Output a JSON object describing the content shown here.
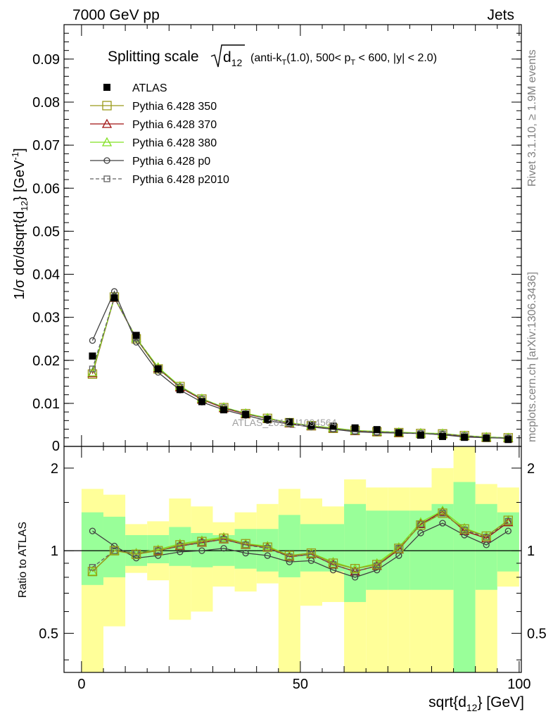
{
  "header": {
    "left": "7000 GeV pp",
    "right": "Jets"
  },
  "side": {
    "rivet": "Rivet 3.1.10, ≥ 1.9M events",
    "mcplots": "mcplots.cern.ch [arXiv:1306.3436]"
  },
  "watermark": "ATLAS_2012_I1094564",
  "title": {
    "main": "Splitting scale",
    "d": "d",
    "d_sub": "12",
    "cut_a": "(anti-k",
    "cut_a_sub": "T",
    "cut_b": "(1.0), 500< p",
    "cut_b_sub": "T",
    "cut_c": " < 600, |y| < 2.0)"
  },
  "ylabel_top": {
    "a": "1/σ dσ/dsqrt{d",
    "sub": "12",
    "b": "} [GeV",
    "sup": "-1",
    "c": "]"
  },
  "ylabel_bottom": "Ratio to ATLAS",
  "xlabel": {
    "a": "sqrt{d",
    "sub": "12",
    "b": "} [GeV]"
  },
  "chart_data": [
    {
      "type": "line",
      "panel": "main",
      "xlim": [
        -4,
        100.5
      ],
      "ylim": [
        0,
        0.098
      ],
      "xticks": [
        0,
        50,
        100
      ],
      "yticks": [
        0,
        0.01,
        0.02,
        0.03,
        0.04,
        0.05,
        0.06,
        0.07,
        0.08,
        0.09
      ],
      "ytick_labels": [
        "0",
        "0.01",
        "0.02",
        "0.03",
        "0.04",
        "0.05",
        "0.06",
        "0.07",
        "0.08",
        "0.09"
      ],
      "legend_position": "top-left",
      "x": [
        2.5,
        7.5,
        12.5,
        17.5,
        22.5,
        27.5,
        32.5,
        37.5,
        42.5,
        47.5,
        52.5,
        57.5,
        62.5,
        67.5,
        72.5,
        77.5,
        82.5,
        87.5,
        92.5,
        97.5
      ],
      "series": [
        {
          "name": "ATLAS",
          "color": "#000000",
          "marker": "filled-square",
          "line": "none",
          "values": [
            0.021,
            0.0345,
            0.0258,
            0.018,
            0.0132,
            0.0104,
            0.0085,
            0.0074,
            0.0063,
            0.0057,
            0.0049,
            0.0047,
            0.0043,
            0.0039,
            0.0032,
            0.0026,
            0.0023,
            0.0021,
            0.0019,
            0.0016
          ]
        },
        {
          "name": "Pythia 6.428 350",
          "color": "#9a9a1a",
          "marker": "open-square",
          "line": "solid",
          "values": [
            0.0168,
            0.0347,
            0.025,
            0.018,
            0.0139,
            0.011,
            0.009,
            0.0076,
            0.0065,
            0.0055,
            0.0048,
            0.0042,
            0.0037,
            0.0034,
            0.0032,
            0.003,
            0.0029,
            0.0025,
            0.0021,
            0.002
          ]
        },
        {
          "name": "Pythia 6.428 370",
          "color": "#a01010",
          "marker": "open-triangle",
          "line": "solid",
          "values": [
            0.017,
            0.0345,
            0.0252,
            0.0182,
            0.0137,
            0.0109,
            0.0089,
            0.0075,
            0.0065,
            0.0054,
            0.0047,
            0.0042,
            0.0036,
            0.0034,
            0.0032,
            0.0031,
            0.0029,
            0.0024,
            0.0021,
            0.0019
          ]
        },
        {
          "name": "Pythia 6.428 380",
          "color": "#80e020",
          "marker": "open-triangle",
          "line": "solid",
          "values": [
            0.0172,
            0.0346,
            0.0252,
            0.0184,
            0.014,
            0.0111,
            0.0091,
            0.0077,
            0.0066,
            0.0055,
            0.0048,
            0.0043,
            0.0037,
            0.0035,
            0.0033,
            0.0031,
            0.003,
            0.0025,
            0.0022,
            0.002
          ]
        },
        {
          "name": "Pythia 6.428 p0",
          "color": "#404040",
          "marker": "open-circle",
          "line": "solid",
          "values": [
            0.0246,
            0.036,
            0.0242,
            0.0172,
            0.0131,
            0.0103,
            0.0085,
            0.0072,
            0.006,
            0.0052,
            0.0045,
            0.004,
            0.0034,
            0.0032,
            0.0031,
            0.003,
            0.0027,
            0.0022,
            0.002,
            0.0019
          ]
        },
        {
          "name": "Pythia 6.428 p2010",
          "color": "#606060",
          "marker": "open-square-small",
          "line": "dashed",
          "values": [
            0.018,
            0.0346,
            0.0252,
            0.0181,
            0.0138,
            0.011,
            0.009,
            0.0076,
            0.0064,
            0.0054,
            0.0047,
            0.0041,
            0.0036,
            0.0034,
            0.0032,
            0.003,
            0.0029,
            0.0025,
            0.0021,
            0.002
          ]
        }
      ]
    },
    {
      "type": "line",
      "panel": "ratio",
      "xlim": [
        -4,
        100.5
      ],
      "ylim": [
        0.36,
        2.4
      ],
      "yscale": "log",
      "yticks": [
        0.5,
        1,
        2
      ],
      "ytick_labels": [
        "0.5",
        "1",
        "2"
      ],
      "xticks": [
        0,
        50,
        100
      ],
      "xtick_labels": [
        "0",
        "50",
        "100"
      ],
      "bands": {
        "edges": [
          0,
          5,
          10,
          15,
          20,
          25,
          30,
          35,
          40,
          45,
          50,
          55,
          60,
          65,
          70,
          75,
          80,
          85,
          90,
          95,
          100
        ],
        "inner_color": "#99ff99",
        "outer_color": "#ffff99",
        "inner_low": [
          0.75,
          0.8,
          0.88,
          0.9,
          0.88,
          0.87,
          0.88,
          0.86,
          0.84,
          0.8,
          0.84,
          0.84,
          0.65,
          0.72,
          0.72,
          0.72,
          0.72,
          0.2,
          0.72,
          0.84
        ],
        "inner_high": [
          1.38,
          1.33,
          1.14,
          1.14,
          1.22,
          1.16,
          1.14,
          1.2,
          1.2,
          1.35,
          1.25,
          1.25,
          1.48,
          1.4,
          1.4,
          1.4,
          1.48,
          1.78,
          1.48,
          1.38
        ],
        "outer_low": [
          0.2,
          0.53,
          0.83,
          0.78,
          0.56,
          0.6,
          0.74,
          0.71,
          0.76,
          0.3,
          0.63,
          0.65,
          0.2,
          0.3,
          0.3,
          0.3,
          0.3,
          0.2,
          0.3,
          0.74
        ],
        "outer_high": [
          1.68,
          1.6,
          1.25,
          1.28,
          1.55,
          1.45,
          1.27,
          1.38,
          1.48,
          1.68,
          1.55,
          1.45,
          1.82,
          1.7,
          1.7,
          1.7,
          2.0,
          3.0,
          1.75,
          1.7
        ]
      },
      "x": [
        2.5,
        7.5,
        12.5,
        17.5,
        22.5,
        27.5,
        32.5,
        37.5,
        42.5,
        47.5,
        52.5,
        57.5,
        62.5,
        67.5,
        72.5,
        77.5,
        82.5,
        87.5,
        92.5,
        97.5
      ],
      "series": [
        {
          "name": "Pythia 6.428 350",
          "color": "#9a9a1a",
          "marker": "open-square",
          "line": "solid",
          "values": [
            0.84,
            1.0,
            0.97,
            1.0,
            1.05,
            1.08,
            1.11,
            1.06,
            1.03,
            0.96,
            0.98,
            0.9,
            0.86,
            0.89,
            1.02,
            1.24,
            1.37,
            1.2,
            1.13,
            1.29
          ]
        },
        {
          "name": "Pythia 6.428 370",
          "color": "#a01010",
          "marker": "open-triangle",
          "line": "solid",
          "values": [
            0.84,
            1.0,
            0.98,
            1.0,
            1.04,
            1.07,
            1.1,
            1.05,
            1.03,
            0.95,
            0.97,
            0.89,
            0.84,
            0.88,
            1.01,
            1.25,
            1.39,
            1.18,
            1.11,
            1.27
          ]
        },
        {
          "name": "Pythia 6.428 380",
          "color": "#80e020",
          "marker": "open-triangle",
          "line": "solid",
          "values": [
            0.84,
            1.0,
            0.98,
            1.01,
            1.06,
            1.09,
            1.12,
            1.06,
            1.04,
            0.96,
            0.98,
            0.91,
            0.86,
            0.9,
            1.03,
            1.27,
            1.4,
            1.21,
            1.13,
            1.29
          ]
        },
        {
          "name": "Pythia 6.428 p0",
          "color": "#404040",
          "marker": "open-circle",
          "line": "solid",
          "values": [
            1.18,
            1.04,
            0.94,
            0.96,
            0.99,
            1.0,
            1.02,
            0.98,
            0.96,
            0.91,
            0.92,
            0.85,
            0.8,
            0.85,
            0.96,
            1.16,
            1.26,
            1.14,
            1.05,
            1.18
          ]
        },
        {
          "name": "Pythia 6.428 p2010",
          "color": "#606060",
          "marker": "open-square-small",
          "line": "dashed",
          "values": [
            0.87,
            1.0,
            0.98,
            1.0,
            1.04,
            1.07,
            1.1,
            1.05,
            1.02,
            0.95,
            0.97,
            0.89,
            0.84,
            0.88,
            1.02,
            1.25,
            1.37,
            1.19,
            1.12,
            1.28
          ]
        }
      ]
    }
  ]
}
